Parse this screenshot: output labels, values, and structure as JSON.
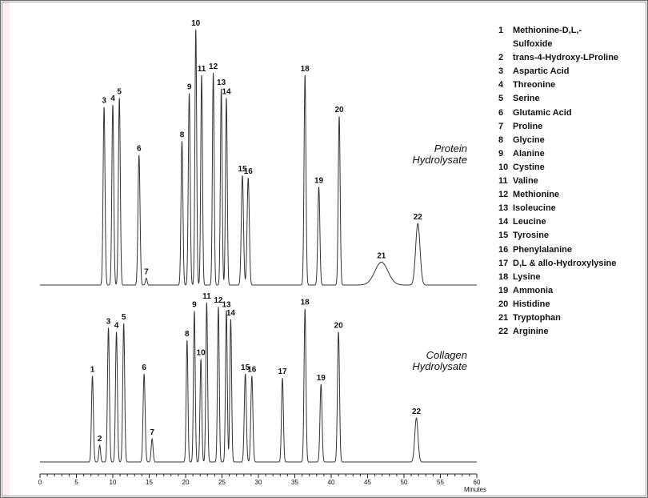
{
  "chart_data": {
    "type": "line",
    "xlabel": "Minutes",
    "xlim": [
      0,
      60
    ],
    "xticks": [
      0,
      5,
      10,
      15,
      20,
      25,
      30,
      35,
      40,
      45,
      50,
      55,
      60
    ],
    "series": [
      {
        "name": "Protein Hydrolysate",
        "label_lines": [
          "Protein",
          "Hydrolysate"
        ],
        "peaks": [
          {
            "label": "3",
            "t": 8.8,
            "h": 0.78,
            "w": 0.13
          },
          {
            "label": "4",
            "t": 10.0,
            "h": 0.79,
            "w": 0.13
          },
          {
            "label": "5",
            "t": 10.9,
            "h": 0.82,
            "w": 0.13
          },
          {
            "label": "6",
            "t": 13.6,
            "h": 0.57,
            "w": 0.14
          },
          {
            "label": "7",
            "t": 14.6,
            "h": 0.03,
            "w": 0.12
          },
          {
            "label": "8",
            "t": 19.5,
            "h": 0.63,
            "w": 0.13
          },
          {
            "label": "9",
            "t": 20.5,
            "h": 0.84,
            "w": 0.13
          },
          {
            "label": "10",
            "t": 21.4,
            "h": 1.12,
            "w": 0.12
          },
          {
            "label": "11",
            "t": 22.2,
            "h": 0.92,
            "w": 0.12
          },
          {
            "label": "12",
            "t": 23.8,
            "h": 0.93,
            "w": 0.12
          },
          {
            "label": "13",
            "t": 24.9,
            "h": 0.86,
            "w": 0.12
          },
          {
            "label": "14",
            "t": 25.6,
            "h": 0.82,
            "w": 0.12
          },
          {
            "label": "15",
            "t": 27.8,
            "h": 0.48,
            "w": 0.15
          },
          {
            "label": "16",
            "t": 28.6,
            "h": 0.47,
            "w": 0.15
          },
          {
            "label": "18",
            "t": 36.4,
            "h": 0.92,
            "w": 0.13
          },
          {
            "label": "19",
            "t": 38.3,
            "h": 0.43,
            "w": 0.14
          },
          {
            "label": "20",
            "t": 41.1,
            "h": 0.74,
            "w": 0.13
          },
          {
            "label": "21",
            "t": 46.9,
            "h": 0.1,
            "w": 0.9
          },
          {
            "label": "22",
            "t": 51.9,
            "h": 0.27,
            "w": 0.3
          }
        ]
      },
      {
        "name": "Collagen Hydrolysate",
        "label_lines": [
          "Collagen",
          "Hydrolysate"
        ],
        "peaks": [
          {
            "label": "1",
            "t": 7.2,
            "h": 0.41,
            "w": 0.13
          },
          {
            "label": "2",
            "t": 8.2,
            "h": 0.08,
            "w": 0.12
          },
          {
            "label": "3",
            "t": 9.4,
            "h": 0.64,
            "w": 0.13
          },
          {
            "label": "4",
            "t": 10.5,
            "h": 0.62,
            "w": 0.13
          },
          {
            "label": "5",
            "t": 11.5,
            "h": 0.66,
            "w": 0.13
          },
          {
            "label": "6",
            "t": 14.3,
            "h": 0.42,
            "w": 0.14
          },
          {
            "label": "7",
            "t": 15.4,
            "h": 0.11,
            "w": 0.13
          },
          {
            "label": "8",
            "t": 20.2,
            "h": 0.58,
            "w": 0.12
          },
          {
            "label": "9",
            "t": 21.2,
            "h": 0.72,
            "w": 0.12
          },
          {
            "label": "10",
            "t": 22.1,
            "h": 0.49,
            "w": 0.12
          },
          {
            "label": "11",
            "t": 22.9,
            "h": 0.76,
            "w": 0.12
          },
          {
            "label": "12",
            "t": 24.5,
            "h": 0.74,
            "w": 0.12
          },
          {
            "label": "13",
            "t": 25.6,
            "h": 0.72,
            "w": 0.12
          },
          {
            "label": "14",
            "t": 26.2,
            "h": 0.68,
            "w": 0.12
          },
          {
            "label": "15",
            "t": 28.2,
            "h": 0.42,
            "w": 0.14
          },
          {
            "label": "16",
            "t": 29.1,
            "h": 0.41,
            "w": 0.14
          },
          {
            "label": "17",
            "t": 33.3,
            "h": 0.4,
            "w": 0.13
          },
          {
            "label": "18",
            "t": 36.4,
            "h": 0.73,
            "w": 0.13
          },
          {
            "label": "19",
            "t": 38.6,
            "h": 0.37,
            "w": 0.14
          },
          {
            "label": "20",
            "t": 41.0,
            "h": 0.62,
            "w": 0.14
          },
          {
            "label": "22",
            "t": 51.7,
            "h": 0.21,
            "w": 0.22
          }
        ]
      }
    ],
    "legend": [
      {
        "num": "1",
        "name": "Methionine-D,L,-"
      },
      {
        "num": "",
        "name": "Sulfoxide"
      },
      {
        "num": "2",
        "name": "trans-4-Hydroxy-LProline"
      },
      {
        "num": "3",
        "name": "Aspartic Acid"
      },
      {
        "num": "4",
        "name": "Threonine"
      },
      {
        "num": "5",
        "name": "Serine"
      },
      {
        "num": "6",
        "name": "Glutamic Acid"
      },
      {
        "num": "7",
        "name": "Proline"
      },
      {
        "num": "8",
        "name": "Glycine"
      },
      {
        "num": "9",
        "name": "Alanine"
      },
      {
        "num": "10",
        "name": "Cystine"
      },
      {
        "num": "11",
        "name": "Valine"
      },
      {
        "num": "12",
        "name": "Methionine"
      },
      {
        "num": "13",
        "name": "Isoleucine"
      },
      {
        "num": "14",
        "name": "Leucine"
      },
      {
        "num": "15",
        "name": "Tyrosine"
      },
      {
        "num": "16",
        "name": "Phenylalanine"
      },
      {
        "num": "17",
        "name": "D,L & allo-Hydroxylysine"
      },
      {
        "num": "18",
        "name": "Lysine"
      },
      {
        "num": "19",
        "name": "Ammonia"
      },
      {
        "num": "20",
        "name": "Histidine"
      },
      {
        "num": "21",
        "name": "Tryptophan"
      },
      {
        "num": "22",
        "name": "Arginine"
      }
    ]
  },
  "colors": {
    "frame": "#6b6b6b",
    "left_strip": "#fbeef5",
    "trace": "#333333",
    "text": "#111111"
  }
}
